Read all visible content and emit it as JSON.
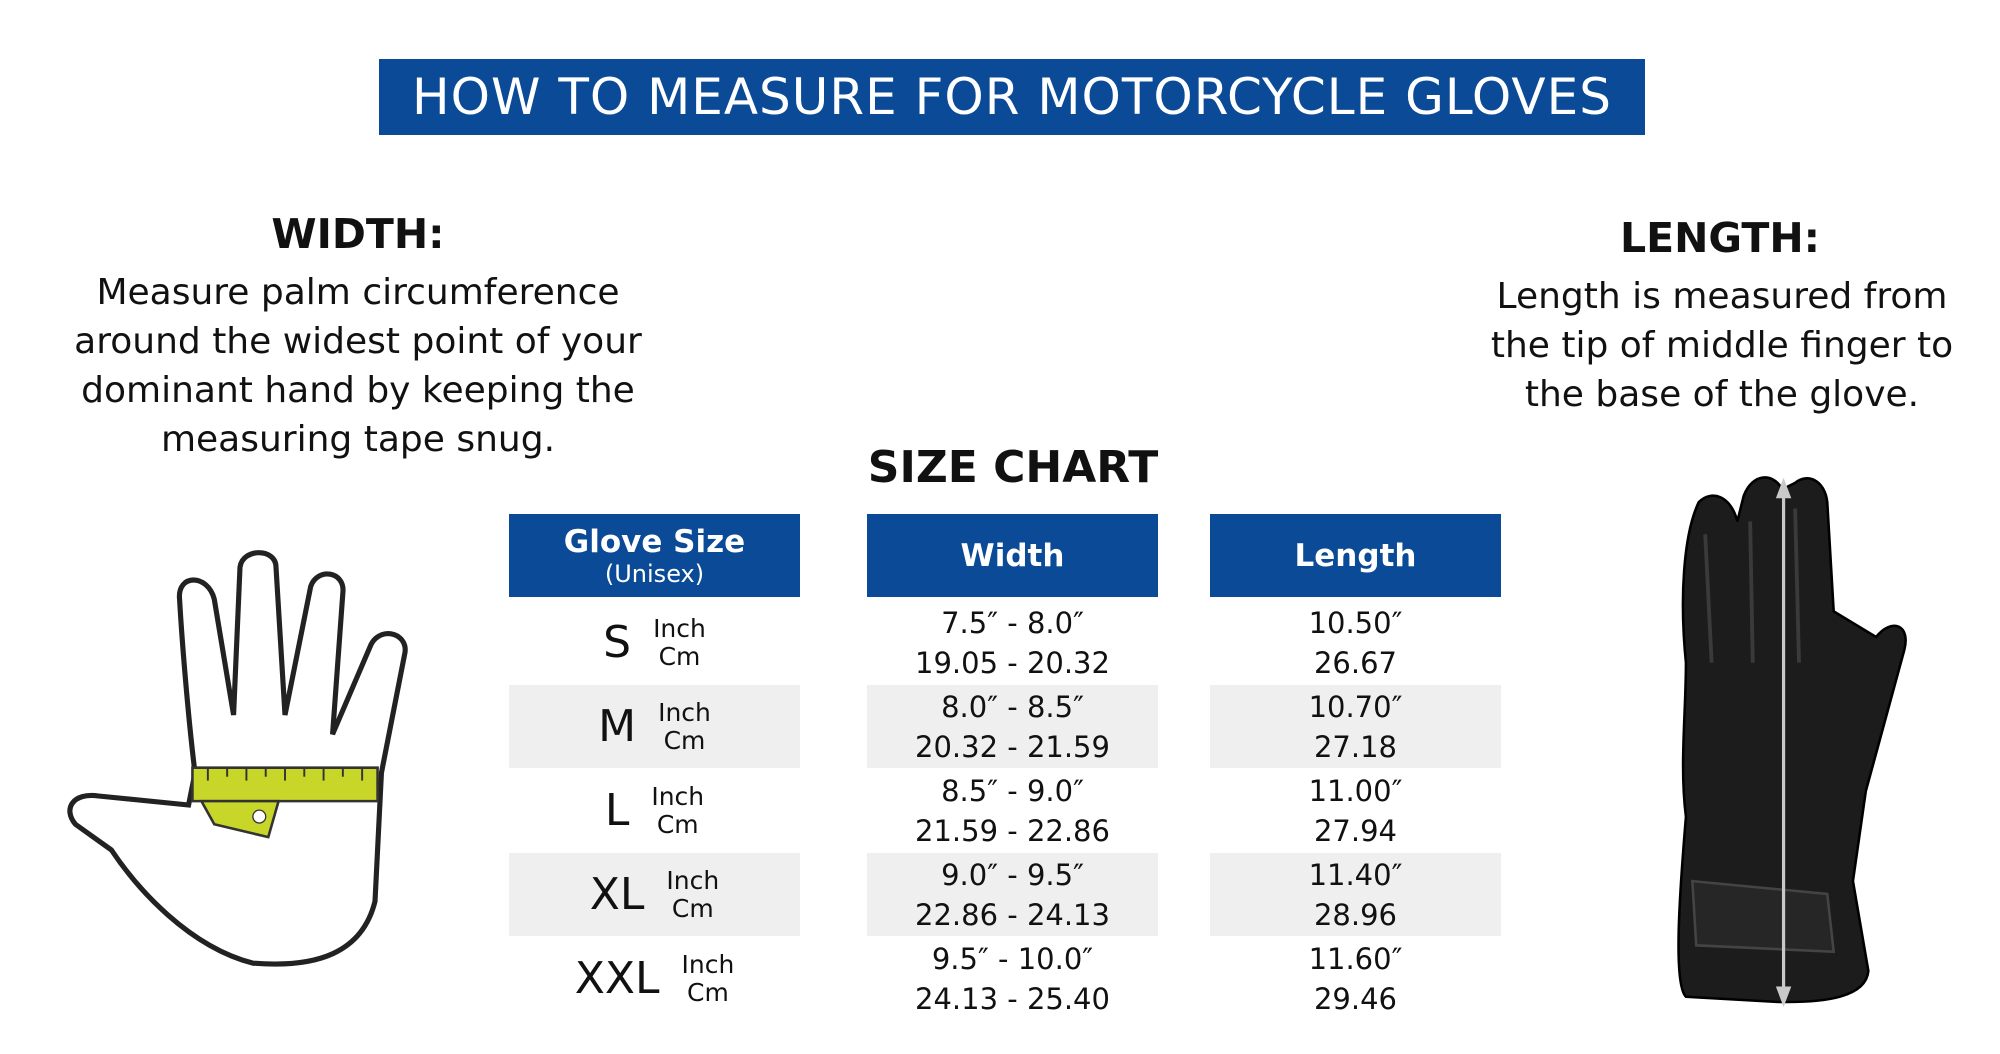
{
  "title": "HOW TO MEASURE FOR MOTORCYCLE GLOVES",
  "width_section": {
    "heading": "WIDTH:",
    "text": "Measure palm circumference around the widest point of your dominant hand by keeping the measuring tape snug."
  },
  "length_section": {
    "heading": "LENGTH:",
    "text": "Length is measured from the tip of middle finger to the base of the glove."
  },
  "size_chart": {
    "title": "SIZE CHART",
    "headers": [
      {
        "label": "Glove Size",
        "sub": "(Unisex)"
      },
      {
        "label": "Width"
      },
      {
        "label": "Length"
      }
    ],
    "rows": [
      {
        "size": "S",
        "units": [
          "Inch",
          "Cm"
        ],
        "width": [
          "7.5″ - 8.0″",
          "19.05 - 20.32"
        ],
        "length": [
          "10.50″",
          "26.67"
        ]
      },
      {
        "size": "M",
        "units": [
          "Inch",
          "Cm"
        ],
        "width": [
          "8.0″ - 8.5″",
          "20.32 - 21.59"
        ],
        "length": [
          "10.70″",
          "27.18"
        ]
      },
      {
        "size": "L",
        "units": [
          "Inch",
          "Cm"
        ],
        "width": [
          "8.5″ - 9.0″",
          "21.59 - 22.86"
        ],
        "length": [
          "11.00″",
          "27.94"
        ]
      },
      {
        "size": "XL",
        "units": [
          "Inch",
          "Cm"
        ],
        "width": [
          "9.0″ - 9.5″",
          "22.86 - 24.13"
        ],
        "length": [
          "11.40″",
          "28.96"
        ]
      },
      {
        "size": "XXL",
        "units": [
          "Inch",
          "Cm"
        ],
        "width": [
          "9.5″ - 10.0″",
          "24.13 - 25.40"
        ],
        "length": [
          "11.60″",
          "29.46"
        ]
      }
    ]
  }
}
